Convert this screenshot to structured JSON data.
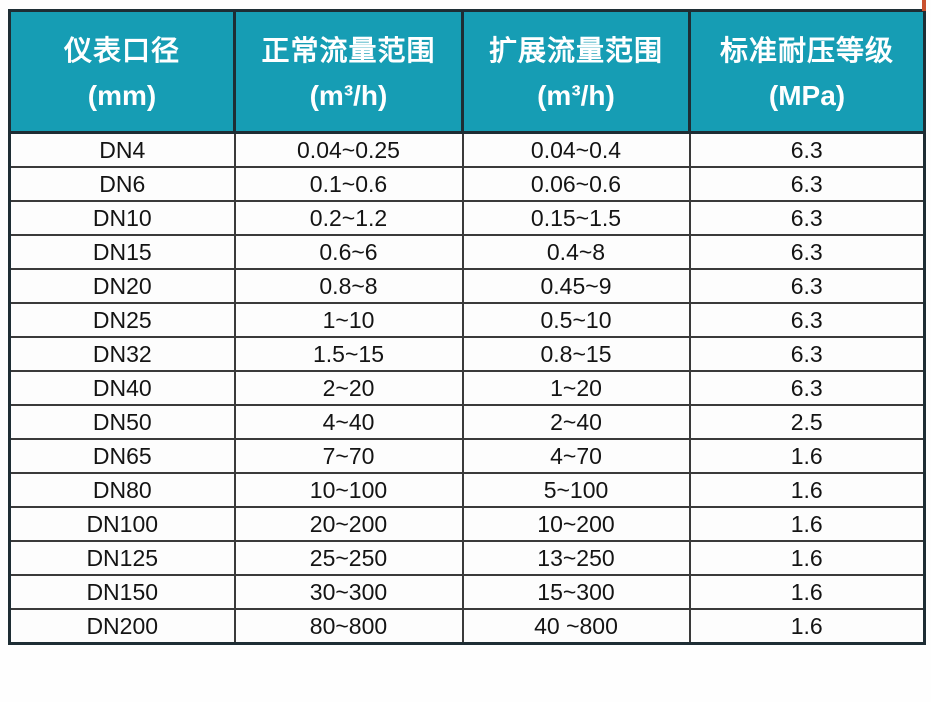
{
  "theme": {
    "header_bg": "#169db4",
    "header_text": "#ffffff",
    "outer_border": "#1e2d34",
    "inner_border": "#3a3a3a",
    "body_text": "#141414",
    "artifact_red": "#c9512f"
  },
  "table": {
    "columns": [
      {
        "title": "仪表口径",
        "unit": "(mm)"
      },
      {
        "title": "正常流量范围",
        "unit": "(m³/h)"
      },
      {
        "title": "扩展流量范围",
        "unit": "(m³/h)"
      },
      {
        "title": "标准耐压等级",
        "unit": "(MPa)"
      }
    ],
    "rows": [
      [
        "DN4",
        "0.04~0.25",
        "0.04~0.4",
        "6.3"
      ],
      [
        "DN6",
        "0.1~0.6",
        "0.06~0.6",
        "6.3"
      ],
      [
        "DN10",
        "0.2~1.2",
        "0.15~1.5",
        "6.3"
      ],
      [
        "DN15",
        "0.6~6",
        "0.4~8",
        "6.3"
      ],
      [
        "DN20",
        "0.8~8",
        "0.45~9",
        "6.3"
      ],
      [
        "DN25",
        "1~10",
        "0.5~10",
        "6.3"
      ],
      [
        "DN32",
        "1.5~15",
        "0.8~15",
        "6.3"
      ],
      [
        "DN40",
        "2~20",
        "1~20",
        "6.3"
      ],
      [
        "DN50",
        "4~40",
        "2~40",
        "2.5"
      ],
      [
        "DN65",
        "7~70",
        "4~70",
        "1.6"
      ],
      [
        "DN80",
        "10~100",
        "5~100",
        "1.6"
      ],
      [
        "DN100",
        "20~200",
        "10~200",
        "1.6"
      ],
      [
        "DN125",
        "25~250",
        "13~250",
        "1.6"
      ],
      [
        "DN150",
        "30~300",
        "15~300",
        "1.6"
      ],
      [
        "DN200",
        "80~800",
        "40 ~800",
        "1.6"
      ]
    ]
  }
}
